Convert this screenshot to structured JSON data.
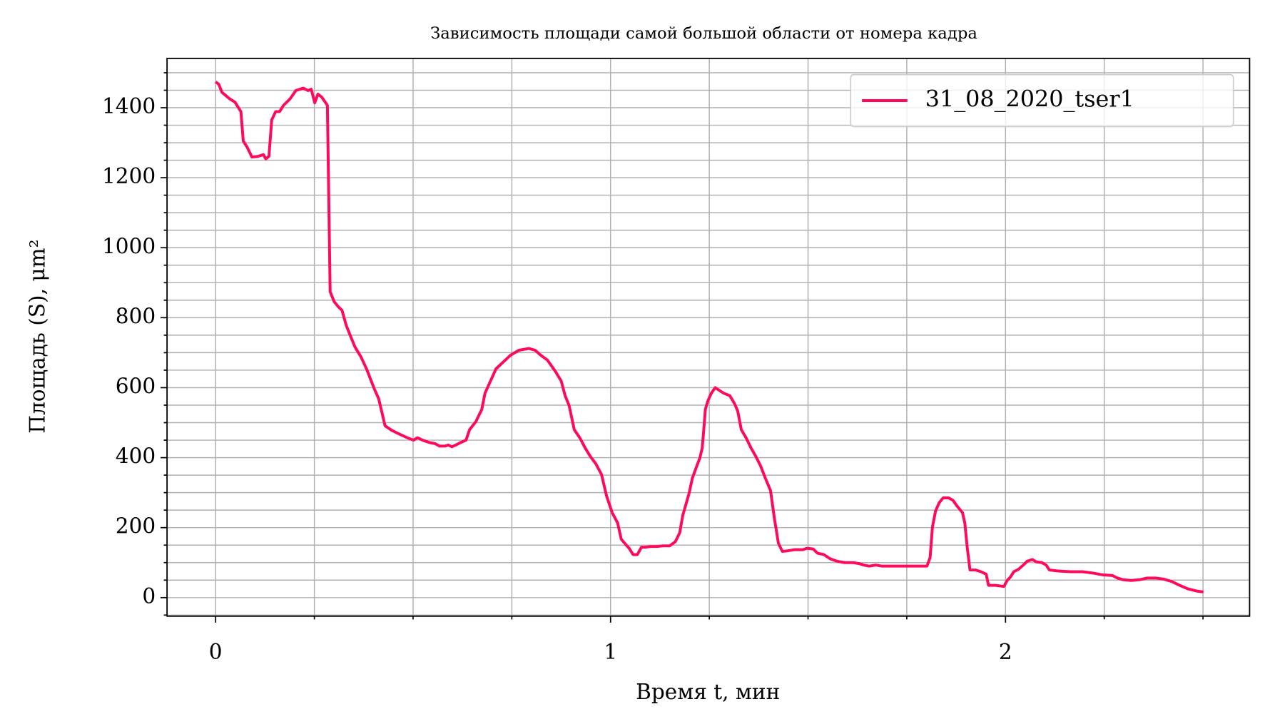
{
  "chart_data": {
    "type": "line",
    "title": "Зависимость площади самой большой области от номера кадра",
    "xlabel": "Время t, мин",
    "ylabel": "Площадь (S), μm²",
    "xlim": [
      -0.123,
      2.618
    ],
    "ylim": [
      -53,
      1541
    ],
    "xticks": [
      0,
      1,
      2
    ],
    "xminorticks": [
      0.25,
      0.5,
      0.75,
      1.25,
      1.5,
      1.75,
      2.25,
      2.5
    ],
    "yticks": [
      0,
      200,
      400,
      600,
      800,
      1000,
      1200,
      1400
    ],
    "yminorticks": [
      -50,
      50,
      100,
      150,
      250,
      300,
      350,
      450,
      500,
      550,
      650,
      700,
      750,
      850,
      900,
      950,
      1050,
      1100,
      1150,
      1250,
      1300,
      1350,
      1450,
      1500
    ],
    "grid": true,
    "legend": "upper right",
    "x": [
      0,
      0.008,
      0.016,
      0.035,
      0.049,
      0.064,
      0.07,
      0.08,
      0.092,
      0.107,
      0.121,
      0.127,
      0.135,
      0.142,
      0.152,
      0.162,
      0.172,
      0.189,
      0.203,
      0.222,
      0.234,
      0.242,
      0.251,
      0.259,
      0.269,
      0.283,
      0.29,
      0.3,
      0.31,
      0.32,
      0.331,
      0.341,
      0.353,
      0.368,
      0.382,
      0.394,
      0.402,
      0.413,
      0.429,
      0.446,
      0.464,
      0.485,
      0.501,
      0.511,
      0.524,
      0.542,
      0.556,
      0.567,
      0.581,
      0.589,
      0.598,
      0.608,
      0.62,
      0.634,
      0.643,
      0.659,
      0.674,
      0.682,
      0.696,
      0.71,
      0.727,
      0.747,
      0.768,
      0.793,
      0.809,
      0.823,
      0.84,
      0.86,
      0.875,
      0.885,
      0.895,
      0.908,
      0.922,
      0.936,
      0.949,
      0.963,
      0.977,
      0.99,
      1.004,
      1.018,
      1.027,
      1.039,
      1.047,
      1.057,
      1.068,
      1.078,
      1.088,
      1.101,
      1.117,
      1.133,
      1.15,
      1.164,
      1.175,
      1.183,
      1.191,
      1.199,
      1.207,
      1.216,
      1.226,
      1.232,
      1.236,
      1.24,
      1.246,
      1.255,
      1.265,
      1.277,
      1.287,
      1.302,
      1.314,
      1.322,
      1.331,
      1.343,
      1.355,
      1.368,
      1.38,
      1.392,
      1.405,
      1.415,
      1.425,
      1.435,
      1.45,
      1.466,
      1.487,
      1.497,
      1.513,
      1.524,
      1.54,
      1.556,
      1.573,
      1.593,
      1.614,
      1.63,
      1.641,
      1.655,
      1.671,
      1.688,
      1.713,
      1.743,
      1.774,
      1.801,
      1.809,
      1.815,
      1.823,
      1.832,
      1.842,
      1.856,
      1.867,
      1.877,
      1.891,
      1.897,
      1.903,
      1.91,
      1.924,
      1.938,
      1.951,
      1.957,
      1.975,
      1.996,
      2.004,
      2.012,
      2.021,
      2.033,
      2.045,
      2.055,
      2.068,
      2.078,
      2.092,
      2.103,
      2.111,
      2.133,
      2.164,
      2.195,
      2.222,
      2.246,
      2.271,
      2.283,
      2.298,
      2.318,
      2.339,
      2.359,
      2.38,
      2.4,
      2.421,
      2.441,
      2.462,
      2.483,
      2.501
    ],
    "series": [
      {
        "name": "31_08_2020_tser1",
        "color": "#ff0a5a",
        "values": [
          1474,
          1467,
          1444,
          1426,
          1416,
          1389,
          1305,
          1287,
          1259,
          1261,
          1266,
          1254,
          1261,
          1365,
          1389,
          1389,
          1407,
          1426,
          1449,
          1456,
          1449,
          1453,
          1414,
          1439,
          1430,
          1407,
          874,
          846,
          832,
          821,
          777,
          749,
          716,
          688,
          654,
          619,
          596,
          568,
          491,
          478,
          468,
          457,
          450,
          457,
          450,
          443,
          440,
          433,
          433,
          436,
          431,
          436,
          443,
          450,
          480,
          503,
          538,
          584,
          619,
          654,
          672,
          693,
          707,
          712,
          707,
          693,
          679,
          647,
          619,
          577,
          549,
          480,
          457,
          427,
          403,
          382,
          352,
          290,
          243,
          213,
          167,
          151,
          141,
          123,
          123,
          144,
          144,
          146,
          146,
          148,
          148,
          160,
          185,
          236,
          267,
          299,
          341,
          369,
          399,
          427,
          480,
          538,
          561,
          584,
          600,
          591,
          584,
          577,
          554,
          533,
          480,
          457,
          429,
          403,
          376,
          341,
          306,
          225,
          155,
          132,
          134,
          137,
          137,
          141,
          139,
          127,
          123,
          111,
          104,
          100,
          100,
          97,
          93,
          90,
          93,
          90,
          90,
          90,
          90,
          90,
          114,
          202,
          248,
          271,
          285,
          285,
          278,
          262,
          243,
          213,
          144,
          79,
          79,
          74,
          67,
          35,
          35,
          32,
          49,
          58,
          74,
          81,
          93,
          104,
          109,
          102,
          100,
          93,
          79,
          76,
          74,
          74,
          70,
          65,
          63,
          56,
          51,
          49,
          51,
          56,
          56,
          53,
          46,
          35,
          25,
          19,
          16
        ]
      }
    ]
  }
}
